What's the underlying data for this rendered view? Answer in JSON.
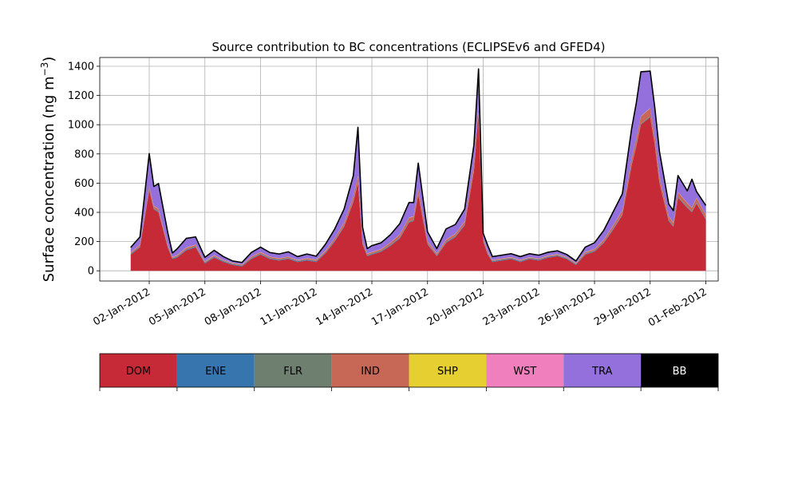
{
  "chart_data": {
    "type": "area",
    "title": "Source contribution to BC concentrations (ECLIPSEv6 and GFED4)",
    "ylabel": "Surface concentration (ng m",
    "ylabel_sup": "−3",
    "ylabel_tail": ")",
    "xlabel": "",
    "xlim": [
      "2011-12-30T08:00",
      "2012-02-01T16:00"
    ],
    "ylim": [
      -70,
      1460
    ],
    "grid": true,
    "yticks": [
      0,
      200,
      400,
      600,
      800,
      1000,
      1200,
      1400
    ],
    "xticks": [
      "2012-01-02",
      "2012-01-05",
      "2012-01-08",
      "2012-01-11",
      "2012-01-14",
      "2012-01-17",
      "2012-01-20",
      "2012-01-23",
      "2012-01-26",
      "2012-01-29",
      "2012-02-01"
    ],
    "xtick_labels": [
      "02-Jan-2012",
      "05-Jan-2012",
      "08-Jan-2012",
      "11-Jan-2012",
      "14-Jan-2012",
      "17-Jan-2012",
      "20-Jan-2012",
      "23-Jan-2012",
      "26-Jan-2012",
      "29-Jan-2012",
      "01-Feb-2012"
    ],
    "x": [
      "2012-01-01T00:00",
      "2012-01-01T12:00",
      "2012-01-02T00:00",
      "2012-01-02T06:00",
      "2012-01-02T12:00",
      "2012-01-03T00:00",
      "2012-01-03T06:00",
      "2012-01-03T12:00",
      "2012-01-04T00:00",
      "2012-01-04T12:00",
      "2012-01-05T00:00",
      "2012-01-05T12:00",
      "2012-01-06T00:00",
      "2012-01-06T12:00",
      "2012-01-07T00:00",
      "2012-01-07T12:00",
      "2012-01-08T00:00",
      "2012-01-08T12:00",
      "2012-01-09T00:00",
      "2012-01-09T12:00",
      "2012-01-10T00:00",
      "2012-01-10T12:00",
      "2012-01-11T00:00",
      "2012-01-11T12:00",
      "2012-01-12T00:00",
      "2012-01-12T12:00",
      "2012-01-13T00:00",
      "2012-01-13T06:00",
      "2012-01-13T12:00",
      "2012-01-13T18:00",
      "2012-01-14T00:00",
      "2012-01-14T12:00",
      "2012-01-15T00:00",
      "2012-01-15T12:00",
      "2012-01-16T00:00",
      "2012-01-16T06:00",
      "2012-01-16T12:00",
      "2012-01-17T00:00",
      "2012-01-17T12:00",
      "2012-01-18T00:00",
      "2012-01-18T12:00",
      "2012-01-19T00:00",
      "2012-01-19T12:00",
      "2012-01-19T18:00",
      "2012-01-20T00:00",
      "2012-01-20T06:00",
      "2012-01-20T12:00",
      "2012-01-21T00:00",
      "2012-01-21T12:00",
      "2012-01-22T00:00",
      "2012-01-22T12:00",
      "2012-01-23T00:00",
      "2012-01-23T12:00",
      "2012-01-24T00:00",
      "2012-01-24T12:00",
      "2012-01-25T00:00",
      "2012-01-25T12:00",
      "2012-01-26T00:00",
      "2012-01-26T12:00",
      "2012-01-27T00:00",
      "2012-01-27T12:00",
      "2012-01-28T00:00",
      "2012-01-28T06:00",
      "2012-01-28T12:00",
      "2012-01-29T00:00",
      "2012-01-29T06:00",
      "2012-01-29T12:00",
      "2012-01-30T00:00",
      "2012-01-30T06:00",
      "2012-01-30T12:00",
      "2012-01-31T00:00",
      "2012-01-31T06:00",
      "2012-01-31T12:00",
      "2012-02-01T00:00"
    ],
    "series": [
      {
        "name": "DOM",
        "color": "#c62a37",
        "values": [
          110,
          160,
          550,
          420,
          400,
          160,
          80,
          90,
          140,
          160,
          50,
          90,
          60,
          40,
          30,
          80,
          110,
          80,
          70,
          80,
          60,
          70,
          60,
          120,
          200,
          300,
          470,
          600,
          180,
          100,
          110,
          130,
          170,
          220,
          330,
          340,
          520,
          180,
          100,
          190,
          230,
          310,
          680,
          1080,
          200,
          110,
          60,
          70,
          80,
          60,
          80,
          70,
          90,
          100,
          80,
          40,
          110,
          130,
          190,
          280,
          380,
          720,
          850,
          1000,
          1050,
          860,
          600,
          340,
          300,
          500,
          430,
          400,
          460,
          350
        ]
      },
      {
        "name": "ENE",
        "color": "#3775ae",
        "values": [
          5,
          5,
          5,
          5,
          5,
          5,
          5,
          5,
          5,
          5,
          5,
          5,
          5,
          5,
          5,
          5,
          5,
          5,
          5,
          5,
          5,
          5,
          5,
          5,
          5,
          5,
          5,
          5,
          5,
          5,
          5,
          5,
          5,
          5,
          5,
          5,
          5,
          5,
          5,
          5,
          5,
          5,
          5,
          5,
          5,
          5,
          5,
          5,
          5,
          5,
          5,
          5,
          5,
          5,
          5,
          5,
          5,
          5,
          5,
          5,
          5,
          5,
          5,
          5,
          5,
          5,
          5,
          5,
          5,
          5,
          5,
          5,
          5,
          5
        ]
      },
      {
        "name": "FLR",
        "color": "#6e7f6f",
        "values": [
          2,
          2,
          2,
          2,
          2,
          2,
          2,
          2,
          2,
          2,
          2,
          2,
          2,
          2,
          2,
          2,
          2,
          2,
          2,
          2,
          2,
          2,
          2,
          2,
          2,
          2,
          2,
          2,
          2,
          2,
          2,
          2,
          2,
          2,
          2,
          2,
          2,
          2,
          2,
          2,
          2,
          2,
          2,
          2,
          2,
          2,
          2,
          2,
          2,
          2,
          2,
          2,
          2,
          2,
          2,
          2,
          2,
          2,
          2,
          2,
          2,
          2,
          2,
          2,
          2,
          2,
          2,
          2,
          2,
          2,
          2,
          2,
          2,
          2
        ]
      },
      {
        "name": "IND",
        "color": "#c76755",
        "values": [
          8,
          10,
          20,
          15,
          15,
          10,
          5,
          8,
          10,
          10,
          5,
          8,
          5,
          5,
          5,
          8,
          10,
          8,
          8,
          8,
          5,
          8,
          8,
          10,
          15,
          20,
          30,
          40,
          15,
          10,
          10,
          10,
          15,
          20,
          25,
          25,
          35,
          15,
          10,
          15,
          15,
          20,
          40,
          50,
          15,
          10,
          5,
          5,
          5,
          5,
          5,
          5,
          5,
          5,
          5,
          5,
          10,
          10,
          15,
          20,
          25,
          40,
          45,
          50,
          55,
          45,
          35,
          25,
          20,
          30,
          25,
          25,
          30,
          25
        ]
      },
      {
        "name": "SHP",
        "color": "#e6cf31",
        "values": [
          1,
          1,
          1,
          1,
          1,
          1,
          1,
          1,
          1,
          1,
          1,
          1,
          1,
          1,
          1,
          1,
          1,
          1,
          1,
          1,
          1,
          1,
          1,
          1,
          1,
          1,
          1,
          1,
          1,
          1,
          1,
          1,
          1,
          1,
          1,
          1,
          1,
          1,
          1,
          1,
          1,
          1,
          1,
          1,
          1,
          1,
          1,
          1,
          1,
          1,
          1,
          1,
          1,
          1,
          1,
          1,
          1,
          1,
          1,
          1,
          1,
          1,
          1,
          1,
          1,
          1,
          1,
          1,
          1,
          1,
          1,
          1,
          1,
          1
        ]
      },
      {
        "name": "WST",
        "color": "#f07fbe",
        "values": [
          1,
          1,
          1,
          1,
          1,
          1,
          1,
          1,
          1,
          1,
          1,
          1,
          1,
          1,
          1,
          1,
          1,
          1,
          1,
          1,
          1,
          1,
          1,
          1,
          1,
          1,
          1,
          1,
          1,
          1,
          1,
          1,
          1,
          1,
          1,
          1,
          1,
          1,
          1,
          1,
          1,
          1,
          1,
          1,
          1,
          1,
          1,
          1,
          1,
          1,
          1,
          1,
          1,
          1,
          1,
          1,
          1,
          1,
          1,
          1,
          1,
          1,
          1,
          1,
          1,
          1,
          1,
          1,
          1,
          1,
          1,
          1,
          1,
          1
        ]
      },
      {
        "name": "TRA",
        "color": "#9370db",
        "values": [
          30,
          50,
          220,
          130,
          170,
          80,
          25,
          40,
          60,
          50,
          25,
          30,
          20,
          10,
          10,
          25,
          30,
          25,
          25,
          30,
          20,
          25,
          20,
          40,
          60,
          90,
          140,
          330,
          90,
          30,
          40,
          40,
          50,
          70,
          100,
          90,
          170,
          60,
          30,
          70,
          60,
          80,
          130,
          240,
          30,
          40,
          20,
          20,
          20,
          20,
          20,
          20,
          20,
          20,
          15,
          10,
          30,
          40,
          60,
          90,
          110,
          200,
          240,
          300,
          250,
          200,
          170,
          80,
          80,
          110,
          80,
          190,
          40,
          60
        ]
      },
      {
        "name": "BB",
        "color": "#000000",
        "values": [
          3,
          3,
          3,
          3,
          3,
          3,
          3,
          3,
          3,
          3,
          3,
          3,
          3,
          3,
          3,
          3,
          3,
          3,
          3,
          3,
          3,
          3,
          3,
          3,
          3,
          3,
          3,
          3,
          3,
          3,
          3,
          3,
          3,
          3,
          3,
          3,
          3,
          3,
          3,
          3,
          3,
          3,
          3,
          3,
          3,
          3,
          3,
          3,
          3,
          3,
          3,
          3,
          3,
          3,
          3,
          3,
          3,
          3,
          3,
          3,
          3,
          3,
          3,
          3,
          3,
          3,
          3,
          3,
          3,
          3,
          3,
          3,
          3,
          3
        ]
      }
    ]
  }
}
